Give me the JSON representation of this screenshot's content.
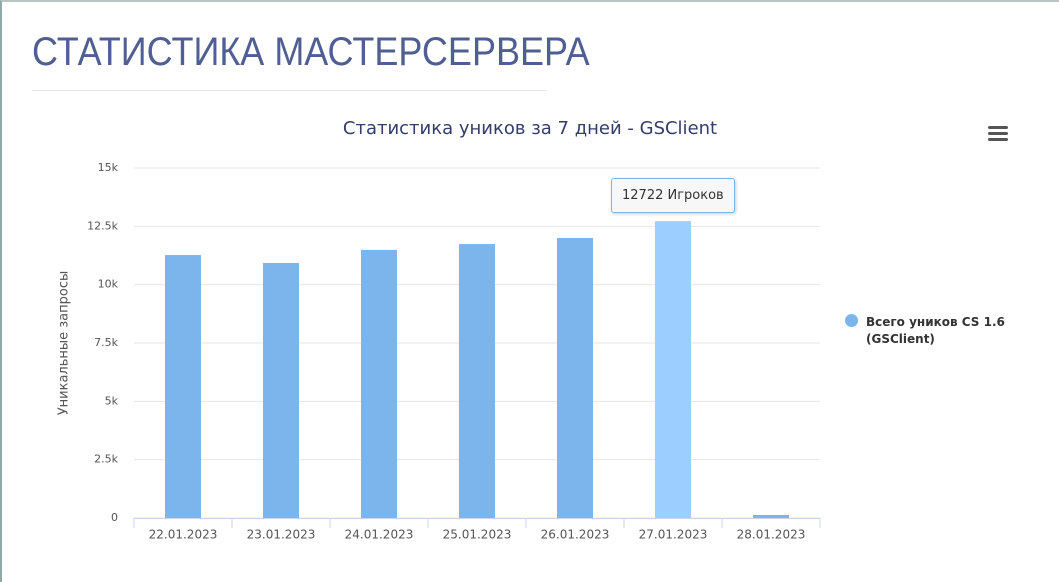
{
  "header": {
    "title": "СТАТИСТИКА МАСТЕРСЕРВЕРА"
  },
  "chart_data": {
    "type": "bar",
    "title": "Статистика уников за 7 дней - GSClient",
    "y_axis_label": "Уникальные запросы",
    "categories": [
      "22.01.2023",
      "23.01.2023",
      "24.01.2023",
      "25.01.2023",
      "26.01.2023",
      "27.01.2023",
      "28.01.2023"
    ],
    "series": [
      {
        "name": "Всего уников CS 1.6 (GSClient)",
        "color": "#7cb5ec",
        "values": [
          11270,
          10930,
          11490,
          11740,
          12000,
          12722,
          130
        ],
        "value_labels": [
          null,
          null,
          null,
          null,
          null,
          "12722 Игроков",
          null
        ]
      }
    ],
    "hover_color": "#9ccfff",
    "ylim": [
      0,
      15000
    ],
    "yticks": [
      {
        "value": 0,
        "label": "0"
      },
      {
        "value": 2500,
        "label": "2.5k"
      },
      {
        "value": 5000,
        "label": "5k"
      },
      {
        "value": 7500,
        "label": "7.5k"
      },
      {
        "value": 10000,
        "label": "10k"
      },
      {
        "value": 12500,
        "label": "12.5k"
      },
      {
        "value": 15000,
        "label": "15k"
      }
    ],
    "grid": true,
    "legend": "right"
  }
}
